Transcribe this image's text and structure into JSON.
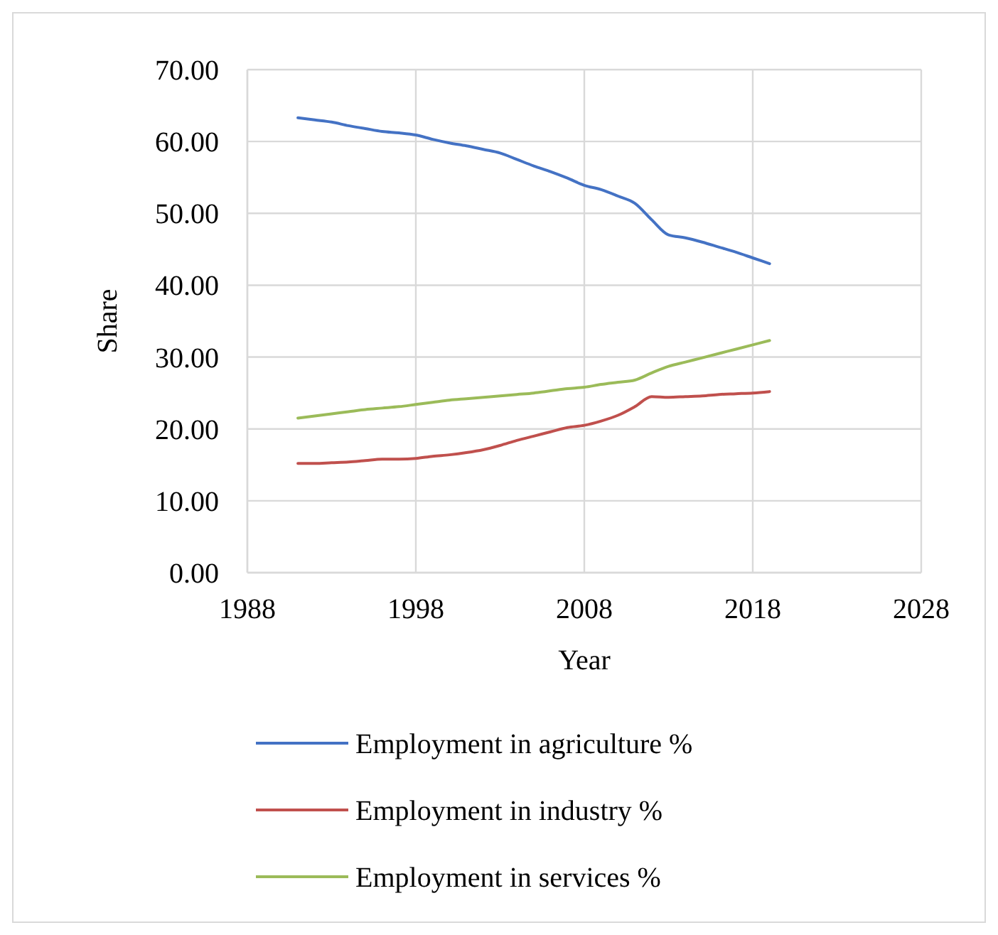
{
  "chart_data": {
    "type": "line",
    "xlabel": "Year",
    "ylabel": "Share",
    "x": [
      1991,
      1992,
      1993,
      1994,
      1995,
      1996,
      1997,
      1998,
      1999,
      2000,
      2001,
      2002,
      2003,
      2004,
      2005,
      2006,
      2007,
      2008,
      2009,
      2010,
      2011,
      2012,
      2013,
      2014,
      2015,
      2016,
      2017,
      2018,
      2019
    ],
    "series": [
      {
        "name": "Employment in agriculture %",
        "color": "#4472c4",
        "values": [
          63.3,
          63.0,
          62.7,
          62.2,
          61.8,
          61.4,
          61.2,
          60.9,
          60.3,
          59.8,
          59.4,
          58.9,
          58.4,
          57.5,
          56.6,
          55.8,
          54.9,
          53.9,
          53.3,
          52.4,
          51.4,
          49.1,
          47.0,
          46.6,
          46.0,
          45.3,
          44.6,
          43.8,
          43.0
        ]
      },
      {
        "name": "Employment in industry %",
        "color": "#c0504d",
        "values": [
          15.2,
          15.2,
          15.3,
          15.4,
          15.6,
          15.8,
          15.8,
          15.9,
          16.2,
          16.4,
          16.7,
          17.1,
          17.7,
          18.4,
          19.0,
          19.6,
          20.2,
          20.5,
          21.1,
          21.9,
          23.1,
          24.5,
          24.4,
          24.5,
          24.6,
          24.8,
          24.9,
          25.0,
          25.2
        ]
      },
      {
        "name": "Employment in services %",
        "color": "#9bbb59",
        "values": [
          21.5,
          21.8,
          22.1,
          22.4,
          22.7,
          22.9,
          23.1,
          23.4,
          23.7,
          24.0,
          24.2,
          24.4,
          24.6,
          24.8,
          25.0,
          25.3,
          25.6,
          25.8,
          26.2,
          26.5,
          26.8,
          27.8,
          28.7,
          29.3,
          29.9,
          30.5,
          31.1,
          31.7,
          32.3
        ]
      }
    ],
    "xlim": [
      1988,
      2028
    ],
    "xticks": [
      1988,
      1998,
      2008,
      2018,
      2028
    ],
    "ylim": [
      0,
      70
    ],
    "yticks": [
      {
        "value": 0,
        "label": "0.00"
      },
      {
        "value": 10,
        "label": "10.00"
      },
      {
        "value": 20,
        "label": "20.00"
      },
      {
        "value": 30,
        "label": "30.00"
      },
      {
        "value": 40,
        "label": "40.00"
      },
      {
        "value": 50,
        "label": "50.00"
      },
      {
        "value": 60,
        "label": "60.00"
      },
      {
        "value": 70,
        "label": "70.00"
      }
    ],
    "grid": true,
    "legend": "bottom",
    "marker": "none",
    "line_style": "solid"
  }
}
